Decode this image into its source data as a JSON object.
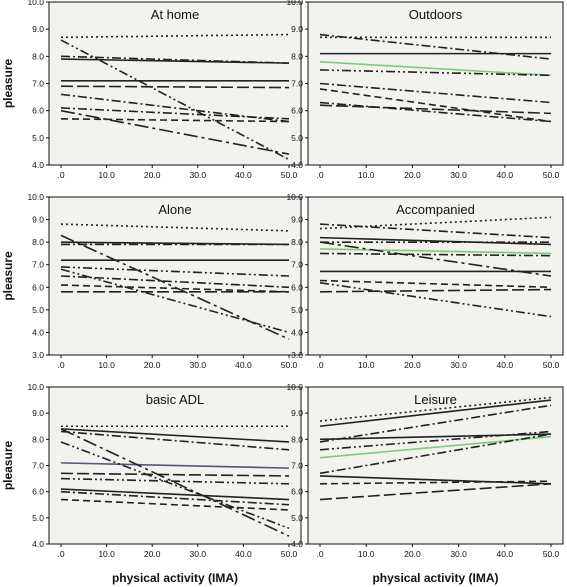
{
  "chart_data": [
    {
      "type": "line",
      "title": "At home",
      "ylabel": "pleasure",
      "xlabel": "",
      "xlim": [
        0,
        50
      ],
      "ylim": [
        4.0,
        10.0
      ],
      "xticks": [
        ".0",
        "10.0",
        "20.0",
        "30.0",
        "40.0",
        "50.0"
      ],
      "yticks": [
        "4.0",
        "5.0",
        "6.0",
        "7.0",
        "8.0",
        "9.0",
        "10.0"
      ],
      "series": [
        {
          "x": [
            0,
            50
          ],
          "y": [
            8.7,
            8.8
          ],
          "style": "dot",
          "color": "#222222"
        },
        {
          "x": [
            0,
            50
          ],
          "y": [
            7.9,
            7.75
          ],
          "style": "solid",
          "color": "#222222"
        },
        {
          "x": [
            0,
            50
          ],
          "y": [
            8.0,
            7.75
          ],
          "style": "dashdot",
          "color": "#222222"
        },
        {
          "x": [
            0,
            50
          ],
          "y": [
            7.1,
            7.1
          ],
          "style": "solid",
          "color": "#222222"
        },
        {
          "x": [
            0,
            50
          ],
          "y": [
            6.6,
            5.6
          ],
          "style": "dashdot",
          "color": "#222222"
        },
        {
          "x": [
            0,
            50
          ],
          "y": [
            6.9,
            6.85
          ],
          "style": "longdash",
          "color": "#222222"
        },
        {
          "x": [
            0,
            50
          ],
          "y": [
            6.1,
            5.7
          ],
          "style": "dashdot",
          "color": "#222222"
        },
        {
          "x": [
            0,
            50
          ],
          "y": [
            5.7,
            5.6
          ],
          "style": "dash",
          "color": "#222222"
        },
        {
          "x": [
            0,
            50
          ],
          "y": [
            8.6,
            4.2
          ],
          "style": "dashdotdot",
          "color": "#222222"
        },
        {
          "x": [
            0,
            50
          ],
          "y": [
            6.0,
            4.4
          ],
          "style": "longdashdot",
          "color": "#222222"
        }
      ]
    },
    {
      "type": "line",
      "title": "Outdoors",
      "ylabel": "",
      "xlabel": "",
      "xlim": [
        0,
        50
      ],
      "ylim": [
        4.0,
        10.0
      ],
      "xticks": [
        ".0",
        "10.0",
        "20.0",
        "30.0",
        "40.0",
        "50.0"
      ],
      "yticks": [
        "4.0",
        "5.0",
        "6.0",
        "7.0",
        "8.0",
        "9.0",
        "10.0"
      ],
      "series": [
        {
          "x": [
            0,
            50
          ],
          "y": [
            8.7,
            8.7
          ],
          "style": "dot",
          "color": "#222222"
        },
        {
          "x": [
            0,
            50
          ],
          "y": [
            8.8,
            7.9
          ],
          "style": "dashdot",
          "color": "#222222"
        },
        {
          "x": [
            0,
            50
          ],
          "y": [
            8.1,
            8.1
          ],
          "style": "solid",
          "color": "#222222"
        },
        {
          "x": [
            0,
            50
          ],
          "y": [
            7.8,
            7.3
          ],
          "style": "solid",
          "color": "#7fc97f"
        },
        {
          "x": [
            0,
            50
          ],
          "y": [
            7.5,
            7.3
          ],
          "style": "dashdotdot",
          "color": "#222222"
        },
        {
          "x": [
            0,
            50
          ],
          "y": [
            7.0,
            6.3
          ],
          "style": "dashdot",
          "color": "#222222"
        },
        {
          "x": [
            0,
            50
          ],
          "y": [
            6.8,
            5.6
          ],
          "style": "dash",
          "color": "#222222"
        },
        {
          "x": [
            0,
            50
          ],
          "y": [
            6.3,
            5.6
          ],
          "style": "dashdot",
          "color": "#222222"
        },
        {
          "x": [
            0,
            50
          ],
          "y": [
            6.2,
            5.9
          ],
          "style": "longdash",
          "color": "#222222"
        }
      ]
    },
    {
      "type": "line",
      "title": "Alone",
      "ylabel": "pleasure",
      "xlabel": "",
      "xlim": [
        0,
        50
      ],
      "ylim": [
        3.0,
        10.0
      ],
      "xticks": [
        ".0",
        "10.0",
        "20.0",
        "30.0",
        "40.0",
        "50.0"
      ],
      "yticks": [
        "3.0",
        "4.0",
        "5.0",
        "6.0",
        "7.0",
        "8.0",
        "9.0",
        "10.0"
      ],
      "series": [
        {
          "x": [
            0,
            50
          ],
          "y": [
            8.8,
            8.5
          ],
          "style": "dot",
          "color": "#222222"
        },
        {
          "x": [
            0,
            50
          ],
          "y": [
            8.0,
            7.9
          ],
          "style": "solid",
          "color": "#222222"
        },
        {
          "x": [
            0,
            50
          ],
          "y": [
            7.9,
            7.9
          ],
          "style": "dashdot",
          "color": "#222222"
        },
        {
          "x": [
            0,
            50
          ],
          "y": [
            7.2,
            7.2
          ],
          "style": "solid",
          "color": "#222222"
        },
        {
          "x": [
            0,
            50
          ],
          "y": [
            6.9,
            6.5
          ],
          "style": "dashdotdot",
          "color": "#222222"
        },
        {
          "x": [
            0,
            50
          ],
          "y": [
            6.5,
            6.0
          ],
          "style": "dashdot",
          "color": "#222222"
        },
        {
          "x": [
            0,
            50
          ],
          "y": [
            6.1,
            5.8
          ],
          "style": "dash",
          "color": "#222222"
        },
        {
          "x": [
            0,
            50
          ],
          "y": [
            5.8,
            5.8
          ],
          "style": "longdash",
          "color": "#222222"
        },
        {
          "x": [
            0,
            50
          ],
          "y": [
            8.3,
            3.7
          ],
          "style": "longdashdot",
          "color": "#222222"
        },
        {
          "x": [
            0,
            50
          ],
          "y": [
            6.8,
            4.0
          ],
          "style": "dashdotdot",
          "color": "#222222"
        }
      ]
    },
    {
      "type": "line",
      "title": "Accompanied",
      "ylabel": "",
      "xlabel": "",
      "xlim": [
        0,
        50
      ],
      "ylim": [
        3.0,
        10.0
      ],
      "xticks": [
        ".0",
        "10.0",
        "20.0",
        "30.0",
        "40.0",
        "50.0"
      ],
      "yticks": [
        "3.0",
        "4.0",
        "5.0",
        "6.0",
        "7.0",
        "8.0",
        "9.0",
        "10.0"
      ],
      "series": [
        {
          "x": [
            0,
            50
          ],
          "y": [
            8.6,
            9.1
          ],
          "style": "dot",
          "color": "#222222"
        },
        {
          "x": [
            0,
            50
          ],
          "y": [
            8.8,
            8.2
          ],
          "style": "dashdot",
          "color": "#222222"
        },
        {
          "x": [
            0,
            50
          ],
          "y": [
            8.2,
            7.9
          ],
          "style": "solid",
          "color": "#222222"
        },
        {
          "x": [
            0,
            50
          ],
          "y": [
            8.0,
            8.0
          ],
          "style": "dashdotdot",
          "color": "#222222"
        },
        {
          "x": [
            0,
            50
          ],
          "y": [
            7.7,
            7.5
          ],
          "style": "solid",
          "color": "#7fc97f"
        },
        {
          "x": [
            0,
            50
          ],
          "y": [
            7.5,
            7.4
          ],
          "style": "dashdot",
          "color": "#222222"
        },
        {
          "x": [
            0,
            50
          ],
          "y": [
            6.7,
            6.7
          ],
          "style": "solid",
          "color": "#222222"
        },
        {
          "x": [
            0,
            50
          ],
          "y": [
            6.3,
            6.0
          ],
          "style": "dash",
          "color": "#222222"
        },
        {
          "x": [
            0,
            50
          ],
          "y": [
            5.8,
            5.9
          ],
          "style": "longdash",
          "color": "#222222"
        },
        {
          "x": [
            0,
            50
          ],
          "y": [
            6.2,
            4.7
          ],
          "style": "dashdotdot",
          "color": "#222222"
        },
        {
          "x": [
            0,
            50
          ],
          "y": [
            8.0,
            6.5
          ],
          "style": "longdashdot",
          "color": "#222222"
        }
      ]
    },
    {
      "type": "line",
      "title": "basic ADL",
      "ylabel": "pleasure",
      "xlabel": "physical activity (IMA)",
      "xlim": [
        0,
        50
      ],
      "ylim": [
        4.0,
        10.0
      ],
      "xticks": [
        ".0",
        "10.0",
        "20.0",
        "30.0",
        "40.0",
        "50.0"
      ],
      "yticks": [
        "4.0",
        "5.0",
        "6.0",
        "7.0",
        "8.0",
        "9.0",
        "10.0"
      ],
      "series": [
        {
          "x": [
            0,
            50
          ],
          "y": [
            8.5,
            8.5
          ],
          "style": "dot",
          "color": "#222222"
        },
        {
          "x": [
            0,
            50
          ],
          "y": [
            8.4,
            7.9
          ],
          "style": "solid",
          "color": "#222222"
        },
        {
          "x": [
            0,
            50
          ],
          "y": [
            8.3,
            7.6
          ],
          "style": "dashdot",
          "color": "#222222"
        },
        {
          "x": [
            0,
            50
          ],
          "y": [
            7.1,
            6.9
          ],
          "style": "solid",
          "color": "#555577"
        },
        {
          "x": [
            0,
            50
          ],
          "y": [
            6.7,
            6.6
          ],
          "style": "longdash",
          "color": "#222222"
        },
        {
          "x": [
            0,
            50
          ],
          "y": [
            6.5,
            6.3
          ],
          "style": "dashdotdot",
          "color": "#222222"
        },
        {
          "x": [
            0,
            50
          ],
          "y": [
            6.1,
            5.7
          ],
          "style": "solid",
          "color": "#222222"
        },
        {
          "x": [
            0,
            50
          ],
          "y": [
            6.0,
            5.5
          ],
          "style": "dashdot",
          "color": "#222222"
        },
        {
          "x": [
            0,
            50
          ],
          "y": [
            5.7,
            5.3
          ],
          "style": "dash",
          "color": "#222222"
        },
        {
          "x": [
            0,
            50
          ],
          "y": [
            8.4,
            4.3
          ],
          "style": "longdashdot",
          "color": "#222222"
        },
        {
          "x": [
            0,
            50
          ],
          "y": [
            7.9,
            4.6
          ],
          "style": "dashdotdot",
          "color": "#222222"
        }
      ]
    },
    {
      "type": "line",
      "title": "Leisure",
      "ylabel": "",
      "xlabel": "physical activity (IMA)",
      "xlim": [
        0,
        50
      ],
      "ylim": [
        4.0,
        10.0
      ],
      "xticks": [
        ".0",
        "10.0",
        "20.0",
        "30.0",
        "40.0",
        "50.0"
      ],
      "yticks": [
        "4.0",
        "5.0",
        "6.0",
        "7.0",
        "8.0",
        "9.0",
        "10.0"
      ],
      "series": [
        {
          "x": [
            0,
            50
          ],
          "y": [
            8.7,
            9.6
          ],
          "style": "dot",
          "color": "#222222"
        },
        {
          "x": [
            0,
            50
          ],
          "y": [
            8.5,
            9.5
          ],
          "style": "solid",
          "color": "#222222"
        },
        {
          "x": [
            0,
            50
          ],
          "y": [
            7.9,
            9.3
          ],
          "style": "dashdot",
          "color": "#222222"
        },
        {
          "x": [
            0,
            50
          ],
          "y": [
            8.0,
            8.2
          ],
          "style": "solid",
          "color": "#222222"
        },
        {
          "x": [
            0,
            50
          ],
          "y": [
            7.6,
            8.3
          ],
          "style": "dashdotdot",
          "color": "#222222"
        },
        {
          "x": [
            0,
            50
          ],
          "y": [
            7.3,
            8.1
          ],
          "style": "solid",
          "color": "#7fc97f"
        },
        {
          "x": [
            0,
            50
          ],
          "y": [
            6.7,
            8.2
          ],
          "style": "dashdot",
          "color": "#222222"
        },
        {
          "x": [
            0,
            50
          ],
          "y": [
            6.6,
            6.3
          ],
          "style": "solid",
          "color": "#222222"
        },
        {
          "x": [
            0,
            50
          ],
          "y": [
            6.3,
            6.4
          ],
          "style": "dash",
          "color": "#222222"
        },
        {
          "x": [
            0,
            50
          ],
          "y": [
            5.7,
            6.3
          ],
          "style": "longdash",
          "color": "#222222"
        }
      ]
    }
  ]
}
